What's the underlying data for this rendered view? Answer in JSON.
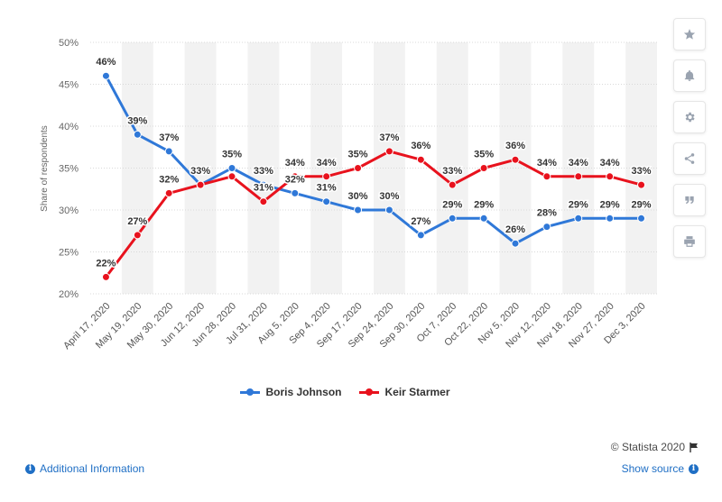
{
  "chart_data": {
    "type": "line",
    "title": "",
    "xlabel": "",
    "ylabel": "Share of respondents",
    "ylim": [
      20,
      50
    ],
    "yticks": [
      20,
      25,
      30,
      35,
      40,
      45,
      50
    ],
    "ytick_labels": [
      "20%",
      "25%",
      "30%",
      "35%",
      "40%",
      "45%",
      "50%"
    ],
    "grid": true,
    "legend_position": "bottom",
    "categories": [
      "April 17, 2020",
      "May 19, 2020",
      "May 30, 2020",
      "Jun 12, 2020",
      "Jun 28, 2020",
      "Jul 31, 2020",
      "Aug 5, 2020",
      "Sep 4, 2020",
      "Sep 17, 2020",
      "Sep 24, 2020",
      "Sep 30, 2020",
      "Oct 7, 2020",
      "Oct 22, 2020",
      "Nov 5, 2020",
      "Nov 12, 2020",
      "Nov 18, 2020",
      "Nov 27, 2020",
      "Dec 3, 2020"
    ],
    "series": [
      {
        "name": "Boris Johnson",
        "color": "#2f78d8",
        "values": [
          46,
          39,
          37,
          33,
          35,
          33,
          32,
          31,
          30,
          30,
          27,
          29,
          29,
          26,
          28,
          29,
          29,
          29
        ],
        "labels": [
          "46%",
          "39%",
          "37%",
          "33%",
          "35%",
          "33%",
          "32%",
          "31%",
          "30%",
          "30%",
          "27%",
          "29%",
          "29%",
          "26%",
          "28%",
          "29%",
          "29%",
          "29%"
        ]
      },
      {
        "name": "Keir Starmer",
        "color": "#e8121d",
        "values": [
          22,
          27,
          32,
          33,
          34,
          31,
          34,
          34,
          35,
          37,
          36,
          33,
          35,
          36,
          34,
          34,
          34,
          33
        ],
        "labels": [
          "22%",
          "27%",
          "32%",
          "",
          "",
          "31%",
          "34%",
          "34%",
          "35%",
          "37%",
          "36%",
          "33%",
          "35%",
          "36%",
          "34%",
          "34%",
          "34%",
          "33%"
        ]
      }
    ]
  },
  "legend": {
    "items": [
      "Boris Johnson",
      "Keir Starmer"
    ]
  },
  "toolbar": {
    "icons": [
      "star-icon",
      "bell-icon",
      "gear-icon",
      "share-icon",
      "quote-icon",
      "print-icon"
    ]
  },
  "footer": {
    "credit": "© Statista 2020",
    "additional_info": "Additional Information",
    "show_source": "Show source"
  }
}
